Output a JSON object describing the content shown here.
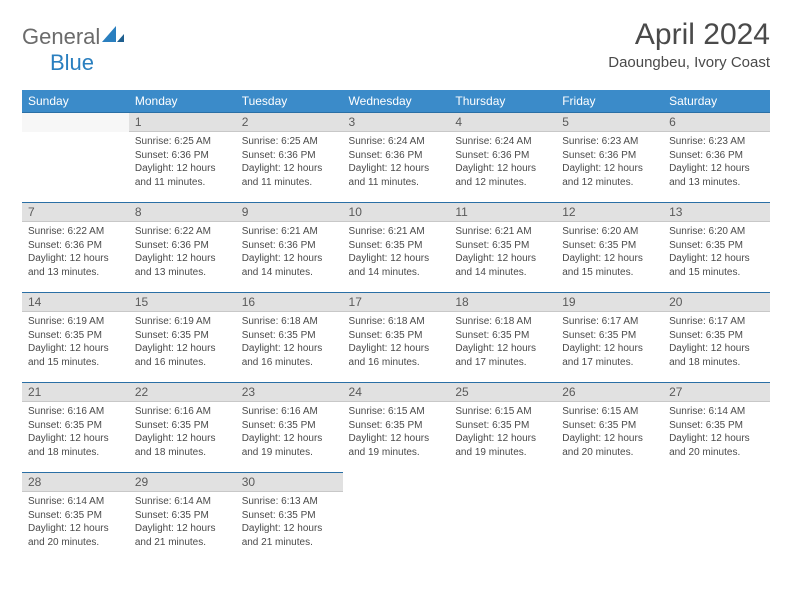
{
  "brand": {
    "general": "General",
    "blue": "Blue"
  },
  "title": "April 2024",
  "location": "Daoungbeu, Ivory Coast",
  "colors": {
    "header_bg": "#3b8bc9",
    "header_border": "#2a6fa5",
    "daynum_bg": "#e1e1e1",
    "text": "#4a4a4a",
    "logo_gray": "#6b6b6b",
    "logo_blue": "#2a7fbf"
  },
  "weekdays": [
    "Sunday",
    "Monday",
    "Tuesday",
    "Wednesday",
    "Thursday",
    "Friday",
    "Saturday"
  ],
  "first_weekday_index": 1,
  "days": [
    {
      "n": 1,
      "sunrise": "6:25 AM",
      "sunset": "6:36 PM",
      "daylight": "12 hours and 11 minutes."
    },
    {
      "n": 2,
      "sunrise": "6:25 AM",
      "sunset": "6:36 PM",
      "daylight": "12 hours and 11 minutes."
    },
    {
      "n": 3,
      "sunrise": "6:24 AM",
      "sunset": "6:36 PM",
      "daylight": "12 hours and 11 minutes."
    },
    {
      "n": 4,
      "sunrise": "6:24 AM",
      "sunset": "6:36 PM",
      "daylight": "12 hours and 12 minutes."
    },
    {
      "n": 5,
      "sunrise": "6:23 AM",
      "sunset": "6:36 PM",
      "daylight": "12 hours and 12 minutes."
    },
    {
      "n": 6,
      "sunrise": "6:23 AM",
      "sunset": "6:36 PM",
      "daylight": "12 hours and 13 minutes."
    },
    {
      "n": 7,
      "sunrise": "6:22 AM",
      "sunset": "6:36 PM",
      "daylight": "12 hours and 13 minutes."
    },
    {
      "n": 8,
      "sunrise": "6:22 AM",
      "sunset": "6:36 PM",
      "daylight": "12 hours and 13 minutes."
    },
    {
      "n": 9,
      "sunrise": "6:21 AM",
      "sunset": "6:36 PM",
      "daylight": "12 hours and 14 minutes."
    },
    {
      "n": 10,
      "sunrise": "6:21 AM",
      "sunset": "6:35 PM",
      "daylight": "12 hours and 14 minutes."
    },
    {
      "n": 11,
      "sunrise": "6:21 AM",
      "sunset": "6:35 PM",
      "daylight": "12 hours and 14 minutes."
    },
    {
      "n": 12,
      "sunrise": "6:20 AM",
      "sunset": "6:35 PM",
      "daylight": "12 hours and 15 minutes."
    },
    {
      "n": 13,
      "sunrise": "6:20 AM",
      "sunset": "6:35 PM",
      "daylight": "12 hours and 15 minutes."
    },
    {
      "n": 14,
      "sunrise": "6:19 AM",
      "sunset": "6:35 PM",
      "daylight": "12 hours and 15 minutes."
    },
    {
      "n": 15,
      "sunrise": "6:19 AM",
      "sunset": "6:35 PM",
      "daylight": "12 hours and 16 minutes."
    },
    {
      "n": 16,
      "sunrise": "6:18 AM",
      "sunset": "6:35 PM",
      "daylight": "12 hours and 16 minutes."
    },
    {
      "n": 17,
      "sunrise": "6:18 AM",
      "sunset": "6:35 PM",
      "daylight": "12 hours and 16 minutes."
    },
    {
      "n": 18,
      "sunrise": "6:18 AM",
      "sunset": "6:35 PM",
      "daylight": "12 hours and 17 minutes."
    },
    {
      "n": 19,
      "sunrise": "6:17 AM",
      "sunset": "6:35 PM",
      "daylight": "12 hours and 17 minutes."
    },
    {
      "n": 20,
      "sunrise": "6:17 AM",
      "sunset": "6:35 PM",
      "daylight": "12 hours and 18 minutes."
    },
    {
      "n": 21,
      "sunrise": "6:16 AM",
      "sunset": "6:35 PM",
      "daylight": "12 hours and 18 minutes."
    },
    {
      "n": 22,
      "sunrise": "6:16 AM",
      "sunset": "6:35 PM",
      "daylight": "12 hours and 18 minutes."
    },
    {
      "n": 23,
      "sunrise": "6:16 AM",
      "sunset": "6:35 PM",
      "daylight": "12 hours and 19 minutes."
    },
    {
      "n": 24,
      "sunrise": "6:15 AM",
      "sunset": "6:35 PM",
      "daylight": "12 hours and 19 minutes."
    },
    {
      "n": 25,
      "sunrise": "6:15 AM",
      "sunset": "6:35 PM",
      "daylight": "12 hours and 19 minutes."
    },
    {
      "n": 26,
      "sunrise": "6:15 AM",
      "sunset": "6:35 PM",
      "daylight": "12 hours and 20 minutes."
    },
    {
      "n": 27,
      "sunrise": "6:14 AM",
      "sunset": "6:35 PM",
      "daylight": "12 hours and 20 minutes."
    },
    {
      "n": 28,
      "sunrise": "6:14 AM",
      "sunset": "6:35 PM",
      "daylight": "12 hours and 20 minutes."
    },
    {
      "n": 29,
      "sunrise": "6:14 AM",
      "sunset": "6:35 PM",
      "daylight": "12 hours and 21 minutes."
    },
    {
      "n": 30,
      "sunrise": "6:13 AM",
      "sunset": "6:35 PM",
      "daylight": "12 hours and 21 minutes."
    }
  ],
  "labels": {
    "sunrise": "Sunrise:",
    "sunset": "Sunset:",
    "daylight": "Daylight:"
  }
}
